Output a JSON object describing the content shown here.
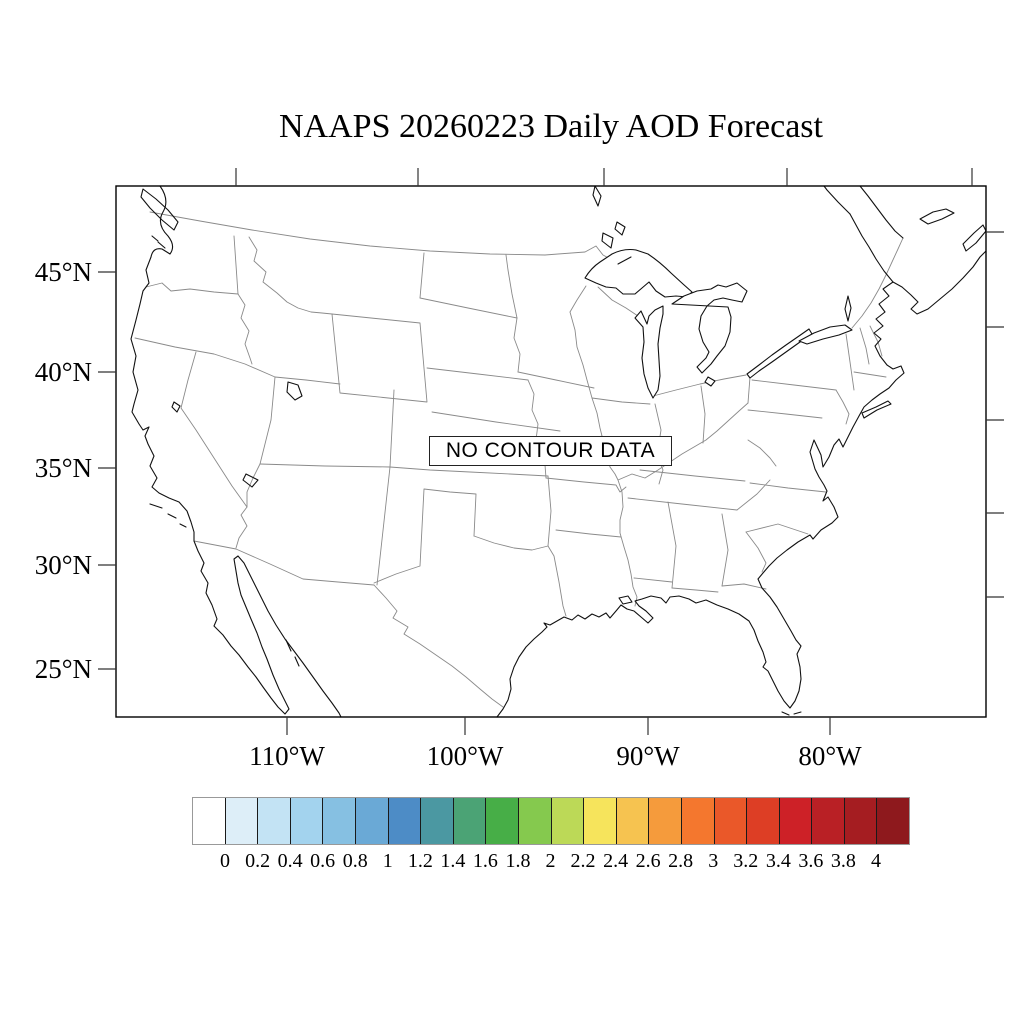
{
  "title": "NAAPS 20260223 Daily AOD Forecast",
  "map": {
    "no_data_label": "NO CONTOUR DATA",
    "lat_labels": [
      "45°N",
      "40°N",
      "35°N",
      "30°N",
      "25°N"
    ],
    "lon_labels": [
      "110°W",
      "100°W",
      "90°W",
      "80°W"
    ]
  },
  "colorbar": {
    "tick_labels": [
      "0",
      "0.2",
      "0.4",
      "0.6",
      "0.8",
      "1",
      "1.2",
      "1.4",
      "1.6",
      "1.8",
      "2",
      "2.2",
      "2.4",
      "2.6",
      "2.8",
      "3",
      "3.2",
      "3.4",
      "3.6",
      "3.8",
      "4"
    ],
    "cell_colors": [
      "#ffffff",
      "#ddeef8",
      "#c3e3f4",
      "#a3d3ee",
      "#86c0e2",
      "#6aa9d6",
      "#4d8cc6",
      "#4b98a2",
      "#4ba375",
      "#47ae47",
      "#85c94e",
      "#bcd957",
      "#f6e45c",
      "#f6c350",
      "#f59b3c",
      "#f4772e",
      "#ea5829",
      "#dd3e25",
      "#cd2127",
      "#b92025",
      "#a51d21",
      "#8e191d"
    ],
    "value_min": 0,
    "value_max": 4,
    "value_step": 0.2
  }
}
